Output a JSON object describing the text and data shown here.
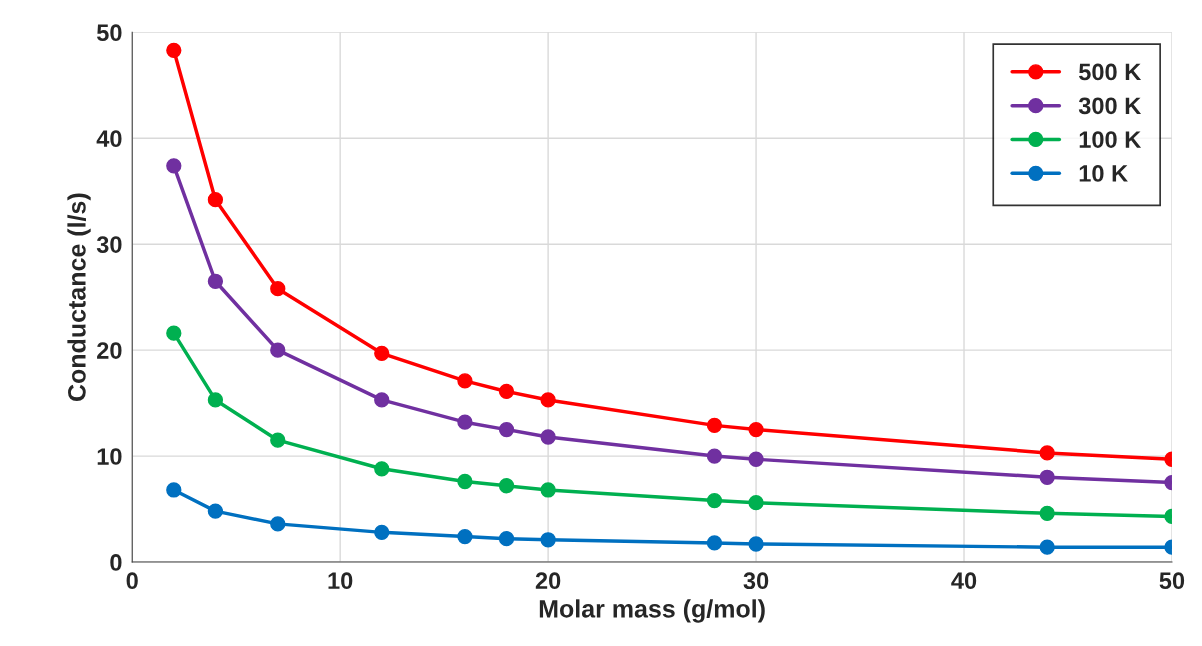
{
  "chart_data": {
    "type": "line",
    "xlabel": "Molar mass (g/mol)",
    "ylabel": "Conductance (l/s)",
    "x": [
      2,
      4,
      7,
      12,
      16,
      18,
      20,
      28,
      30,
      44,
      50
    ],
    "series": [
      {
        "name": "500 K",
        "color": "#ff0000",
        "values": [
          48.3,
          34.2,
          25.8,
          19.7,
          17.1,
          16.1,
          15.3,
          12.9,
          12.5,
          10.3,
          9.7
        ]
      },
      {
        "name": "300 K",
        "color": "#7030a0",
        "values": [
          37.4,
          26.5,
          20.0,
          15.3,
          13.2,
          12.5,
          11.8,
          10.0,
          9.7,
          8.0,
          7.5
        ]
      },
      {
        "name": "100 K",
        "color": "#00b050",
        "values": [
          21.6,
          15.3,
          11.5,
          8.8,
          7.6,
          7.2,
          6.8,
          5.8,
          5.6,
          4.6,
          4.3
        ]
      },
      {
        "name": "10 K",
        "color": "#0070c0",
        "values": [
          6.8,
          4.8,
          3.6,
          2.8,
          2.4,
          2.2,
          2.1,
          1.8,
          1.7,
          1.4,
          1.4
        ]
      }
    ],
    "xlim": [
      0,
      50
    ],
    "xticks": [
      0,
      10,
      20,
      30,
      40,
      50
    ],
    "ylim": [
      0,
      50
    ],
    "yticks": [
      0,
      10,
      20,
      30,
      40,
      50
    ],
    "grid": true,
    "legend": "top right",
    "marker": "circle",
    "line_style": "solid"
  }
}
